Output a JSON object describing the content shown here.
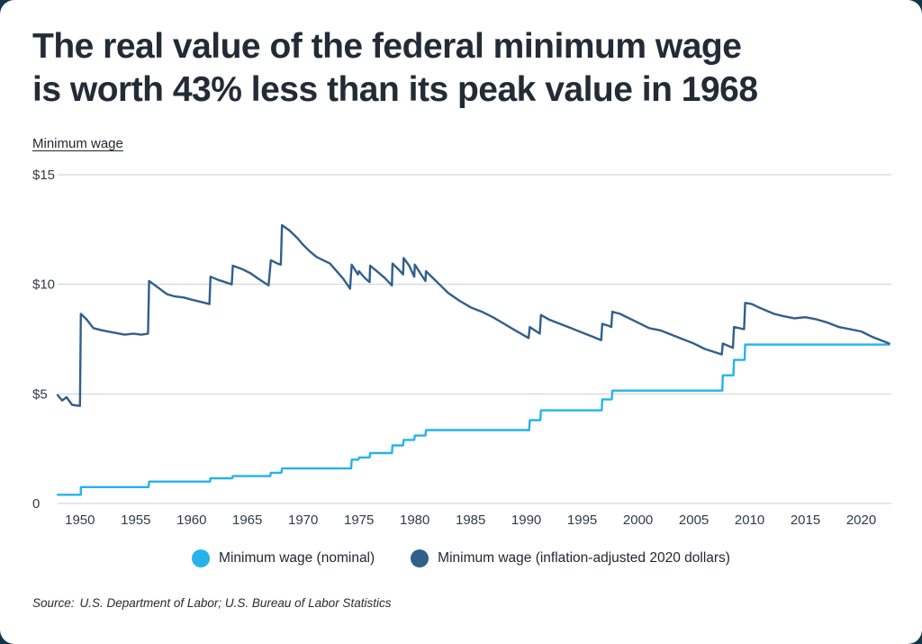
{
  "page": {
    "title_line1": "The real value of the federal minimum wage",
    "title_line2": "is worth 43% less than its peak value in 1968",
    "source_label": "Source:",
    "source_text": "U.S. Department of Labor; U.S. Bureau of Labor Statistics",
    "frame_color": "#113647"
  },
  "chart_data": {
    "type": "line",
    "title": "The real value of the federal minimum wage is worth 43% less than its peak value in 1968",
    "ylabel": "Minimum wage",
    "xlabel": "",
    "grid": "horizontal",
    "legend_position": "bottom-center",
    "xlim": [
      1948,
      2022.7
    ],
    "ylim": [
      0,
      15
    ],
    "y_ticks": [
      {
        "v": 0,
        "label": "0"
      },
      {
        "v": 5,
        "label": "$5"
      },
      {
        "v": 10,
        "label": "$10"
      },
      {
        "v": 15,
        "label": "$15"
      }
    ],
    "x_ticks": [
      1950,
      1955,
      1960,
      1965,
      1970,
      1975,
      1980,
      1985,
      1990,
      1995,
      2000,
      2005,
      2010,
      2015,
      2020
    ],
    "series": [
      {
        "name": "Minimum wage (nominal)",
        "color": "#25b3ea",
        "points": [
          [
            1948,
            0.4
          ],
          [
            1950.07,
            0.4
          ],
          [
            1950.08,
            0.75
          ],
          [
            1956.15,
            0.75
          ],
          [
            1956.2,
            1.0
          ],
          [
            1961.65,
            1.0
          ],
          [
            1961.7,
            1.15
          ],
          [
            1963.65,
            1.15
          ],
          [
            1963.7,
            1.25
          ],
          [
            1967.05,
            1.25
          ],
          [
            1967.1,
            1.4
          ],
          [
            1968.05,
            1.4
          ],
          [
            1968.1,
            1.6
          ],
          [
            1974.3,
            1.6
          ],
          [
            1974.35,
            2.0
          ],
          [
            1974.95,
            2.0
          ],
          [
            1975.0,
            2.1
          ],
          [
            1975.95,
            2.1
          ],
          [
            1976.0,
            2.3
          ],
          [
            1977.95,
            2.3
          ],
          [
            1978.0,
            2.65
          ],
          [
            1978.95,
            2.65
          ],
          [
            1979.0,
            2.9
          ],
          [
            1979.95,
            2.9
          ],
          [
            1980.0,
            3.1
          ],
          [
            1980.95,
            3.1
          ],
          [
            1981.0,
            3.35
          ],
          [
            1990.25,
            3.35
          ],
          [
            1990.3,
            3.8
          ],
          [
            1991.25,
            3.8
          ],
          [
            1991.3,
            4.25
          ],
          [
            1996.75,
            4.25
          ],
          [
            1996.8,
            4.75
          ],
          [
            1997.65,
            4.75
          ],
          [
            1997.7,
            5.15
          ],
          [
            2007.55,
            5.15
          ],
          [
            2007.6,
            5.85
          ],
          [
            2008.55,
            5.85
          ],
          [
            2008.6,
            6.55
          ],
          [
            2009.55,
            6.55
          ],
          [
            2009.6,
            7.25
          ],
          [
            2022.5,
            7.25
          ]
        ]
      },
      {
        "name": "Minimum wage (inflation-adjusted 2020 dollars)",
        "color": "#315f8c",
        "points": [
          [
            1948.0,
            4.95
          ],
          [
            1948.4,
            4.7
          ],
          [
            1948.8,
            4.85
          ],
          [
            1949.3,
            4.5
          ],
          [
            1950.0,
            4.45
          ],
          [
            1950.08,
            8.65
          ],
          [
            1950.6,
            8.4
          ],
          [
            1951.2,
            8.0
          ],
          [
            1952.0,
            7.9
          ],
          [
            1953.0,
            7.8
          ],
          [
            1954.0,
            7.7
          ],
          [
            1954.8,
            7.75
          ],
          [
            1955.5,
            7.7
          ],
          [
            1956.1,
            7.75
          ],
          [
            1956.2,
            10.15
          ],
          [
            1957.0,
            9.85
          ],
          [
            1957.8,
            9.55
          ],
          [
            1958.5,
            9.45
          ],
          [
            1959.3,
            9.4
          ],
          [
            1960.0,
            9.3
          ],
          [
            1960.8,
            9.2
          ],
          [
            1961.6,
            9.1
          ],
          [
            1961.7,
            10.35
          ],
          [
            1962.4,
            10.2
          ],
          [
            1963.0,
            10.1
          ],
          [
            1963.6,
            10.0
          ],
          [
            1963.7,
            10.85
          ],
          [
            1964.5,
            10.7
          ],
          [
            1965.3,
            10.5
          ],
          [
            1966.0,
            10.25
          ],
          [
            1966.9,
            9.95
          ],
          [
            1967.1,
            11.1
          ],
          [
            1967.7,
            10.95
          ],
          [
            1968.0,
            10.9
          ],
          [
            1968.1,
            12.7
          ],
          [
            1968.8,
            12.45
          ],
          [
            1969.5,
            12.1
          ],
          [
            1970.0,
            11.8
          ],
          [
            1970.6,
            11.5
          ],
          [
            1971.2,
            11.25
          ],
          [
            1971.8,
            11.1
          ],
          [
            1972.4,
            10.95
          ],
          [
            1973.0,
            10.6
          ],
          [
            1973.6,
            10.25
          ],
          [
            1974.2,
            9.8
          ],
          [
            1974.35,
            10.9
          ],
          [
            1974.9,
            10.45
          ],
          [
            1975.0,
            10.6
          ],
          [
            1975.5,
            10.3
          ],
          [
            1975.95,
            10.1
          ],
          [
            1976.0,
            10.85
          ],
          [
            1976.6,
            10.6
          ],
          [
            1977.3,
            10.3
          ],
          [
            1977.95,
            9.95
          ],
          [
            1978.0,
            10.95
          ],
          [
            1978.5,
            10.7
          ],
          [
            1978.95,
            10.45
          ],
          [
            1979.0,
            11.2
          ],
          [
            1979.5,
            10.85
          ],
          [
            1979.95,
            10.35
          ],
          [
            1980.0,
            10.9
          ],
          [
            1980.5,
            10.5
          ],
          [
            1980.95,
            10.15
          ],
          [
            1981.0,
            10.6
          ],
          [
            1981.6,
            10.3
          ],
          [
            1982.2,
            10.0
          ],
          [
            1983.0,
            9.6
          ],
          [
            1984.0,
            9.25
          ],
          [
            1985.0,
            8.95
          ],
          [
            1986.0,
            8.75
          ],
          [
            1987.0,
            8.5
          ],
          [
            1988.0,
            8.2
          ],
          [
            1989.0,
            7.9
          ],
          [
            1990.2,
            7.55
          ],
          [
            1990.3,
            8.05
          ],
          [
            1990.9,
            7.85
          ],
          [
            1991.2,
            7.75
          ],
          [
            1991.3,
            8.6
          ],
          [
            1992.0,
            8.4
          ],
          [
            1993.0,
            8.2
          ],
          [
            1994.0,
            8.0
          ],
          [
            1995.0,
            7.8
          ],
          [
            1996.0,
            7.6
          ],
          [
            1996.7,
            7.45
          ],
          [
            1996.8,
            8.2
          ],
          [
            1997.4,
            8.1
          ],
          [
            1997.6,
            8.05
          ],
          [
            1997.7,
            8.75
          ],
          [
            1998.4,
            8.65
          ],
          [
            1999.0,
            8.5
          ],
          [
            2000.0,
            8.25
          ],
          [
            2001.0,
            8.0
          ],
          [
            2002.0,
            7.9
          ],
          [
            2003.0,
            7.7
          ],
          [
            2004.0,
            7.5
          ],
          [
            2005.0,
            7.3
          ],
          [
            2006.0,
            7.05
          ],
          [
            2007.5,
            6.8
          ],
          [
            2007.6,
            7.3
          ],
          [
            2008.5,
            7.1
          ],
          [
            2008.6,
            8.05
          ],
          [
            2009.5,
            7.95
          ],
          [
            2009.6,
            9.15
          ],
          [
            2010.2,
            9.1
          ],
          [
            2010.8,
            8.95
          ],
          [
            2011.5,
            8.8
          ],
          [
            2012.2,
            8.65
          ],
          [
            2013.0,
            8.55
          ],
          [
            2014.0,
            8.45
          ],
          [
            2015.0,
            8.5
          ],
          [
            2016.0,
            8.4
          ],
          [
            2017.0,
            8.25
          ],
          [
            2018.0,
            8.05
          ],
          [
            2019.0,
            7.95
          ],
          [
            2020.0,
            7.85
          ],
          [
            2021.0,
            7.6
          ],
          [
            2022.0,
            7.4
          ],
          [
            2022.5,
            7.3
          ]
        ]
      }
    ]
  }
}
